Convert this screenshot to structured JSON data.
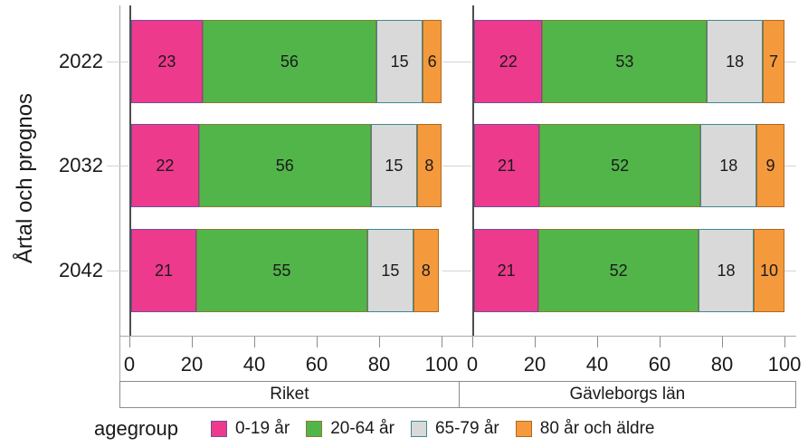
{
  "chart_data": {
    "type": "bar",
    "orientation": "horizontal-stacked",
    "title": "",
    "ylabel": "Årtal och prognos",
    "xlabel": "",
    "xlim": [
      0,
      100
    ],
    "x_ticks": [
      0,
      20,
      40,
      60,
      80,
      100
    ],
    "categories": [
      "2022",
      "2032",
      "2042"
    ],
    "grid": "off",
    "legend": {
      "title": "agegroup",
      "position": "bottom"
    },
    "groups": [
      {
        "name": "0-19 år",
        "color": "#EE3A8C",
        "border": "#6E4F9E"
      },
      {
        "name": "20-64 år",
        "color": "#52B54A",
        "border": "#8A7A33"
      },
      {
        "name": "65-79 år",
        "color": "#D9D9D9",
        "border": "#3D8A94"
      },
      {
        "name": "80 år och äldre",
        "color": "#F5993D",
        "border": "#AD6A1F"
      }
    ],
    "panels": [
      {
        "label": "Riket",
        "rows": [
          {
            "category": "2022",
            "values": [
              23,
              56,
              15,
              6
            ]
          },
          {
            "category": "2032",
            "values": [
              22,
              56,
              15,
              8
            ]
          },
          {
            "category": "2042",
            "values": [
              21,
              55,
              15,
              8
            ]
          }
        ]
      },
      {
        "label": "Gävleborgs län",
        "rows": [
          {
            "category": "2022",
            "values": [
              22,
              53,
              18,
              7
            ]
          },
          {
            "category": "2032",
            "values": [
              21,
              52,
              18,
              9
            ]
          },
          {
            "category": "2042",
            "values": [
              21,
              52,
              18,
              10
            ]
          }
        ]
      }
    ]
  }
}
